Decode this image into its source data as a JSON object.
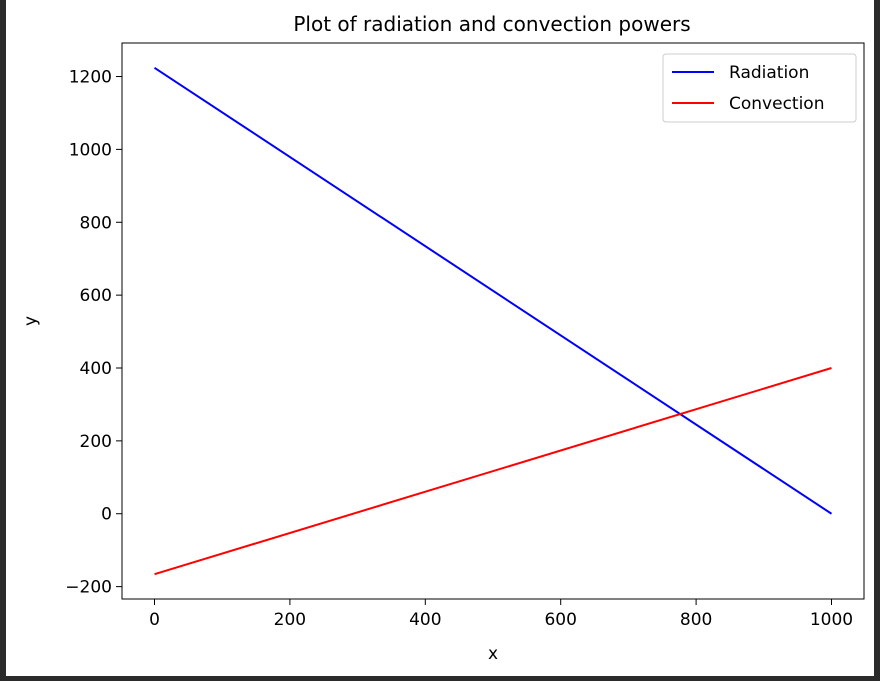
{
  "chart_data": {
    "type": "line",
    "title": "Plot of radiation and convection powers",
    "xlabel": "x",
    "ylabel": "y",
    "xlim": [
      -48,
      1048
    ],
    "ylim": [
      -234,
      1292
    ],
    "xticks": [
      0,
      200,
      400,
      600,
      800,
      1000
    ],
    "yticks": [
      -200,
      0,
      200,
      400,
      600,
      800,
      1000,
      1200
    ],
    "xtick_labels": [
      "0",
      "200",
      "400",
      "600",
      "800",
      "1000"
    ],
    "ytick_labels": [
      "−200",
      "0",
      "200",
      "400",
      "600",
      "800",
      "1000",
      "1200"
    ],
    "grid": false,
    "legend_position": "top-right",
    "series": [
      {
        "name": "Radiation",
        "color": "#0000ff",
        "x": [
          0,
          1000
        ],
        "y": [
          1224,
          0
        ]
      },
      {
        "name": "Convection",
        "color": "#ff0000",
        "x": [
          0,
          1000
        ],
        "y": [
          -166,
          400
        ]
      }
    ]
  }
}
